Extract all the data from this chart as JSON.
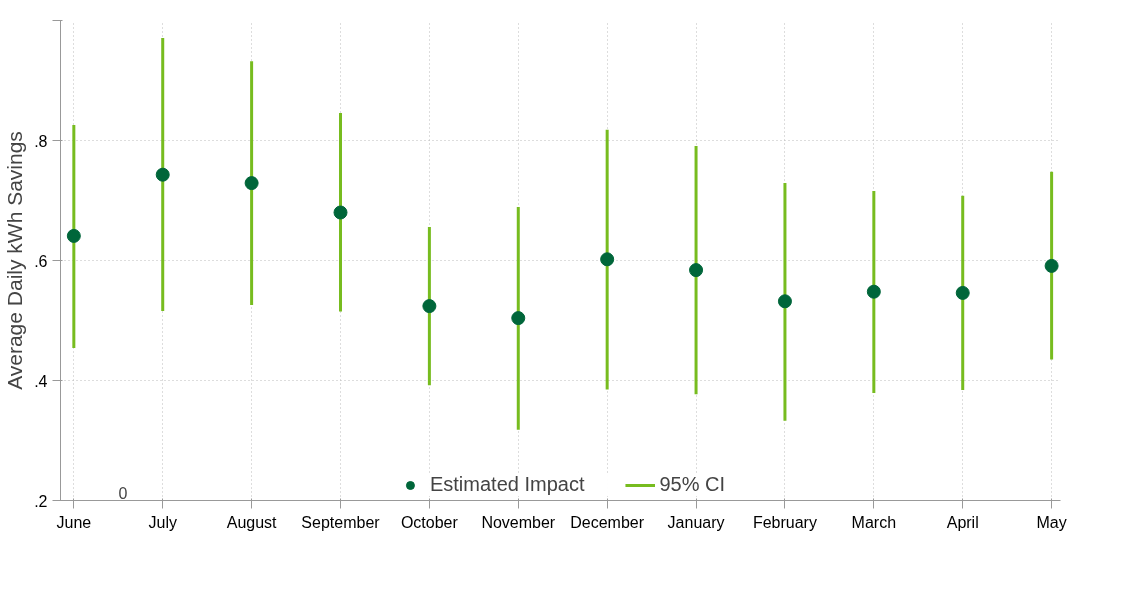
{
  "chart_data": {
    "type": "scatter",
    "ylabel": "Average Daily kWh Savings",
    "categories": [
      "June",
      "July",
      "August",
      "September",
      "October",
      "November",
      "December",
      "January",
      "February",
      "March",
      "April",
      "May"
    ],
    "series": [
      {
        "name": "Estimated Impact",
        "color": "#00663a",
        "values": [
          0.641,
          0.743,
          0.729,
          0.68,
          0.524,
          0.504,
          0.602,
          0.584,
          0.532,
          0.548,
          0.546,
          0.591
        ],
        "errors": [
          [
            0.454,
            0.826
          ],
          [
            0.516,
            0.971
          ],
          [
            0.526,
            0.932
          ],
          [
            0.515,
            0.846
          ],
          [
            0.392,
            0.656
          ],
          [
            0.318,
            0.689
          ],
          [
            0.385,
            0.818
          ],
          [
            0.377,
            0.791
          ],
          [
            0.333,
            0.729
          ],
          [
            0.379,
            0.716
          ],
          [
            0.384,
            0.708
          ],
          [
            0.435,
            0.748
          ]
        ]
      },
      {
        "name": "95% CI",
        "color": "#77bc1f",
        "type": "line",
        "values": [
          null,
          null,
          null,
          null,
          null,
          null,
          null,
          null,
          null,
          null,
          null,
          null
        ]
      }
    ],
    "ylim": [
      0.2,
      1.0
    ],
    "yticks": [
      {
        "value": 0.2,
        "label": ".2"
      },
      {
        "value": 0.4,
        "label": ".4"
      },
      {
        "value": 0.6,
        "label": ".6"
      },
      {
        "value": 0.8,
        "label": ".8"
      },
      {
        "value": 1.0,
        "label": null
      }
    ],
    "grid": true,
    "legend": "bottom",
    "marker": "circle",
    "annotations": [
      "0"
    ]
  }
}
